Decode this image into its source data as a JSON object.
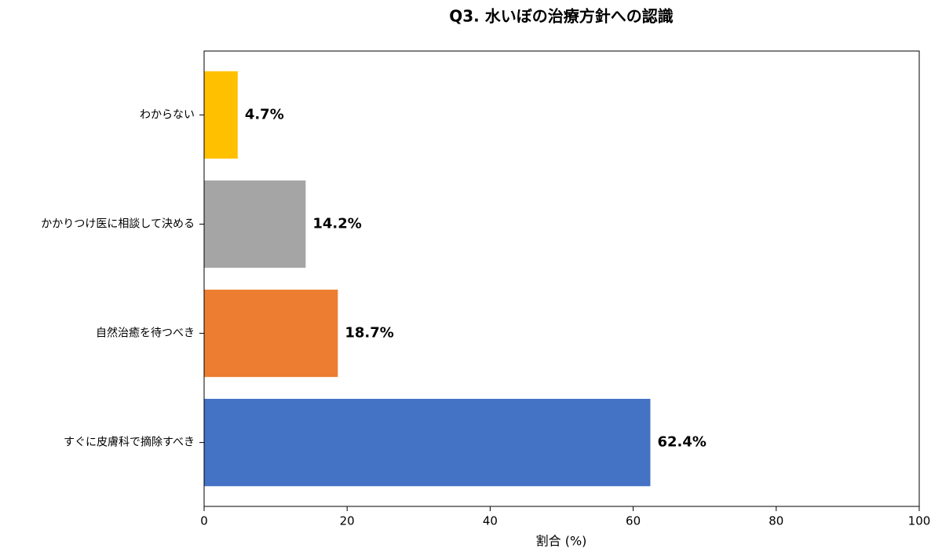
{
  "chart_data": {
    "type": "barh",
    "title": "Q3. 水いぼの治療方針への認識",
    "categories": [
      "すぐに皮膚科で摘除すべき",
      "自然治癒を待つべき",
      "かかりつけ医に相談して決める",
      "わからない"
    ],
    "values": [
      62.4,
      18.7,
      14.2,
      4.7
    ],
    "value_labels": [
      "62.4%",
      "18.7%",
      "14.2%",
      "4.7%"
    ],
    "colors": [
      "#4472c4",
      "#ed7d31",
      "#a5a5a5",
      "#ffc000"
    ],
    "xlabel": "割合 (%)",
    "xlim": [
      0,
      100
    ],
    "xticks": [
      0,
      20,
      40,
      60,
      80,
      100
    ]
  }
}
